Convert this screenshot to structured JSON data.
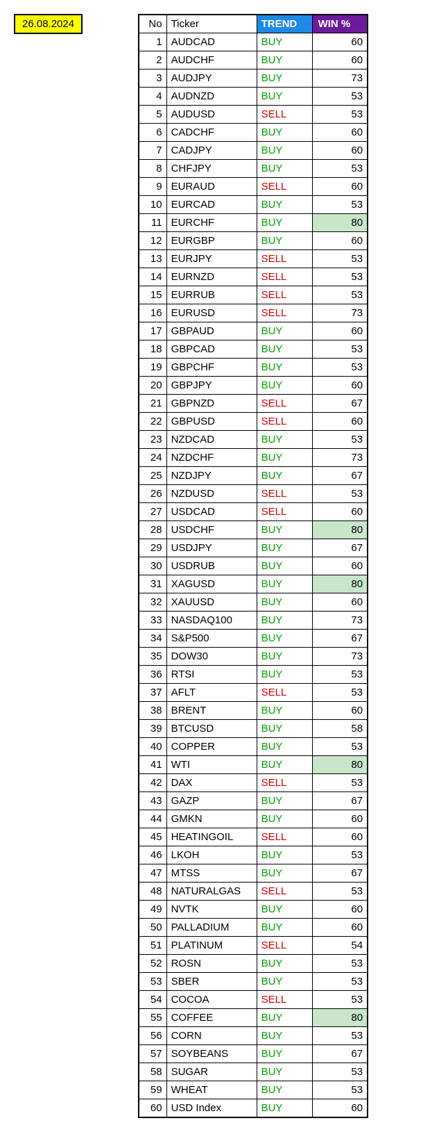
{
  "date": "26.08.2024",
  "headers": {
    "no": "No",
    "ticker": "Ticker",
    "trend": "TREND",
    "win": "WIN %"
  },
  "colors": {
    "trend_header_bg": "#1e88e5",
    "win_header_bg": "#6a1b9a",
    "header_text": "#ffffff",
    "buy": "#00a000",
    "sell": "#d00000",
    "highlight_bg": "#c8e6c9",
    "date_bg": "#ffff00",
    "border": "#000000"
  },
  "highlight_threshold": 80,
  "rows": [
    {
      "no": 1,
      "ticker": "AUDCAD",
      "trend": "BUY",
      "win": 60
    },
    {
      "no": 2,
      "ticker": "AUDCHF",
      "trend": "BUY",
      "win": 60
    },
    {
      "no": 3,
      "ticker": "AUDJPY",
      "trend": "BUY",
      "win": 73
    },
    {
      "no": 4,
      "ticker": "AUDNZD",
      "trend": "BUY",
      "win": 53
    },
    {
      "no": 5,
      "ticker": "AUDUSD",
      "trend": "SELL",
      "win": 53
    },
    {
      "no": 6,
      "ticker": "CADCHF",
      "trend": "BUY",
      "win": 60
    },
    {
      "no": 7,
      "ticker": "CADJPY",
      "trend": "BUY",
      "win": 60
    },
    {
      "no": 8,
      "ticker": "CHFJPY",
      "trend": "BUY",
      "win": 53
    },
    {
      "no": 9,
      "ticker": "EURAUD",
      "trend": "SELL",
      "win": 60
    },
    {
      "no": 10,
      "ticker": "EURCAD",
      "trend": "BUY",
      "win": 53
    },
    {
      "no": 11,
      "ticker": "EURCHF",
      "trend": "BUY",
      "win": 80
    },
    {
      "no": 12,
      "ticker": "EURGBP",
      "trend": "BUY",
      "win": 60
    },
    {
      "no": 13,
      "ticker": "EURJPY",
      "trend": "SELL",
      "win": 53
    },
    {
      "no": 14,
      "ticker": "EURNZD",
      "trend": "SELL",
      "win": 53
    },
    {
      "no": 15,
      "ticker": "EURRUB",
      "trend": "SELL",
      "win": 53
    },
    {
      "no": 16,
      "ticker": "EURUSD",
      "trend": "SELL",
      "win": 73
    },
    {
      "no": 17,
      "ticker": "GBPAUD",
      "trend": "BUY",
      "win": 60
    },
    {
      "no": 18,
      "ticker": "GBPCAD",
      "trend": "BUY",
      "win": 53
    },
    {
      "no": 19,
      "ticker": "GBPCHF",
      "trend": "BUY",
      "win": 53
    },
    {
      "no": 20,
      "ticker": "GBPJPY",
      "trend": "BUY",
      "win": 60
    },
    {
      "no": 21,
      "ticker": "GBPNZD",
      "trend": "SELL",
      "win": 67
    },
    {
      "no": 22,
      "ticker": "GBPUSD",
      "trend": "SELL",
      "win": 60
    },
    {
      "no": 23,
      "ticker": "NZDCAD",
      "trend": "BUY",
      "win": 53
    },
    {
      "no": 24,
      "ticker": "NZDCHF",
      "trend": "BUY",
      "win": 73
    },
    {
      "no": 25,
      "ticker": "NZDJPY",
      "trend": "BUY",
      "win": 67
    },
    {
      "no": 26,
      "ticker": "NZDUSD",
      "trend": "SELL",
      "win": 53
    },
    {
      "no": 27,
      "ticker": "USDCAD",
      "trend": "SELL",
      "win": 60
    },
    {
      "no": 28,
      "ticker": "USDCHF",
      "trend": "BUY",
      "win": 80
    },
    {
      "no": 29,
      "ticker": "USDJPY",
      "trend": "BUY",
      "win": 67
    },
    {
      "no": 30,
      "ticker": "USDRUB",
      "trend": "BUY",
      "win": 60
    },
    {
      "no": 31,
      "ticker": "XAGUSD",
      "trend": "BUY",
      "win": 80
    },
    {
      "no": 32,
      "ticker": "XAUUSD",
      "trend": "BUY",
      "win": 60
    },
    {
      "no": 33,
      "ticker": "NASDAQ100",
      "trend": "BUY",
      "win": 73
    },
    {
      "no": 34,
      "ticker": "S&P500",
      "trend": "BUY",
      "win": 67
    },
    {
      "no": 35,
      "ticker": "DOW30",
      "trend": "BUY",
      "win": 73
    },
    {
      "no": 36,
      "ticker": "RTSI",
      "trend": "BUY",
      "win": 53
    },
    {
      "no": 37,
      "ticker": "AFLT",
      "trend": "SELL",
      "win": 53
    },
    {
      "no": 38,
      "ticker": "BRENT",
      "trend": "BUY",
      "win": 60
    },
    {
      "no": 39,
      "ticker": "BTCUSD",
      "trend": "BUY",
      "win": 58
    },
    {
      "no": 40,
      "ticker": "COPPER",
      "trend": "BUY",
      "win": 53
    },
    {
      "no": 41,
      "ticker": "WTI",
      "trend": "BUY",
      "win": 80
    },
    {
      "no": 42,
      "ticker": "DAX",
      "trend": "SELL",
      "win": 53
    },
    {
      "no": 43,
      "ticker": "GAZP",
      "trend": "BUY",
      "win": 67
    },
    {
      "no": 44,
      "ticker": "GMKN",
      "trend": "BUY",
      "win": 60
    },
    {
      "no": 45,
      "ticker": "HEATINGOIL",
      "trend": "SELL",
      "win": 60
    },
    {
      "no": 46,
      "ticker": "LKOH",
      "trend": "BUY",
      "win": 53
    },
    {
      "no": 47,
      "ticker": "MTSS",
      "trend": "BUY",
      "win": 67
    },
    {
      "no": 48,
      "ticker": "NATURALGAS",
      "trend": "SELL",
      "win": 53
    },
    {
      "no": 49,
      "ticker": "NVTK",
      "trend": "BUY",
      "win": 60
    },
    {
      "no": 50,
      "ticker": "PALLADIUM",
      "trend": "BUY",
      "win": 60
    },
    {
      "no": 51,
      "ticker": "PLATINUM",
      "trend": "SELL",
      "win": 54
    },
    {
      "no": 52,
      "ticker": "ROSN",
      "trend": "BUY",
      "win": 53
    },
    {
      "no": 53,
      "ticker": "SBER",
      "trend": "BUY",
      "win": 53
    },
    {
      "no": 54,
      "ticker": "COCOA",
      "trend": "SELL",
      "win": 53
    },
    {
      "no": 55,
      "ticker": "COFFEE",
      "trend": "BUY",
      "win": 80
    },
    {
      "no": 56,
      "ticker": "CORN",
      "trend": "BUY",
      "win": 53
    },
    {
      "no": 57,
      "ticker": "SOYBEANS",
      "trend": "BUY",
      "win": 67
    },
    {
      "no": 58,
      "ticker": "SUGAR",
      "trend": "BUY",
      "win": 53
    },
    {
      "no": 59,
      "ticker": "WHEAT",
      "trend": "BUY",
      "win": 53
    },
    {
      "no": 60,
      "ticker": "USD Index",
      "trend": "BUY",
      "win": 60
    }
  ]
}
